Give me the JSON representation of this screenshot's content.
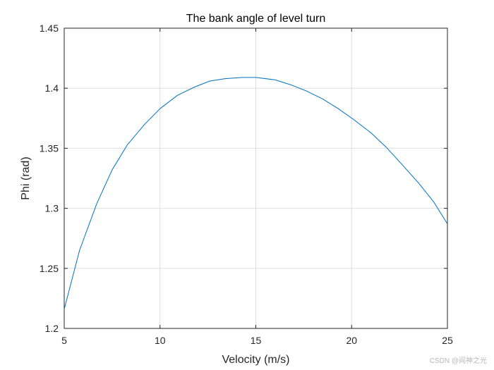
{
  "chart_data": {
    "type": "line",
    "title": "The bank angle of level turn",
    "xlabel": "Velocity (m/s)",
    "ylabel": "Phi (rad)",
    "xlim": [
      5,
      25
    ],
    "ylim": [
      1.2,
      1.45
    ],
    "xticks": [
      5,
      10,
      15,
      20,
      25
    ],
    "xtick_labels": [
      "5",
      "10",
      "15",
      "20",
      "25"
    ],
    "yticks": [
      1.2,
      1.25,
      1.3,
      1.35,
      1.4,
      1.45
    ],
    "ytick_labels": [
      "1.2",
      "1.25",
      "1.3",
      "1.35",
      "1.4",
      "1.45"
    ],
    "grid": true,
    "series_color": "#0072bd",
    "series": [
      {
        "x": [
          5.0,
          5.8,
          6.7,
          7.5,
          8.3,
          9.2,
          10.0,
          10.9,
          11.8,
          12.6,
          13.4,
          14.3,
          15.0,
          16.0,
          16.8,
          17.6,
          18.5,
          19.3,
          20.1,
          21.0,
          21.8,
          22.6,
          23.5,
          24.3,
          25.0
        ],
        "y": [
          1.216,
          1.265,
          1.304,
          1.332,
          1.353,
          1.37,
          1.383,
          1.394,
          1.401,
          1.406,
          1.408,
          1.409,
          1.409,
          1.407,
          1.403,
          1.398,
          1.391,
          1.383,
          1.374,
          1.363,
          1.351,
          1.337,
          1.321,
          1.305,
          1.287
        ]
      }
    ]
  },
  "watermark": {
    "text": "CSDN @阎神之光"
  }
}
